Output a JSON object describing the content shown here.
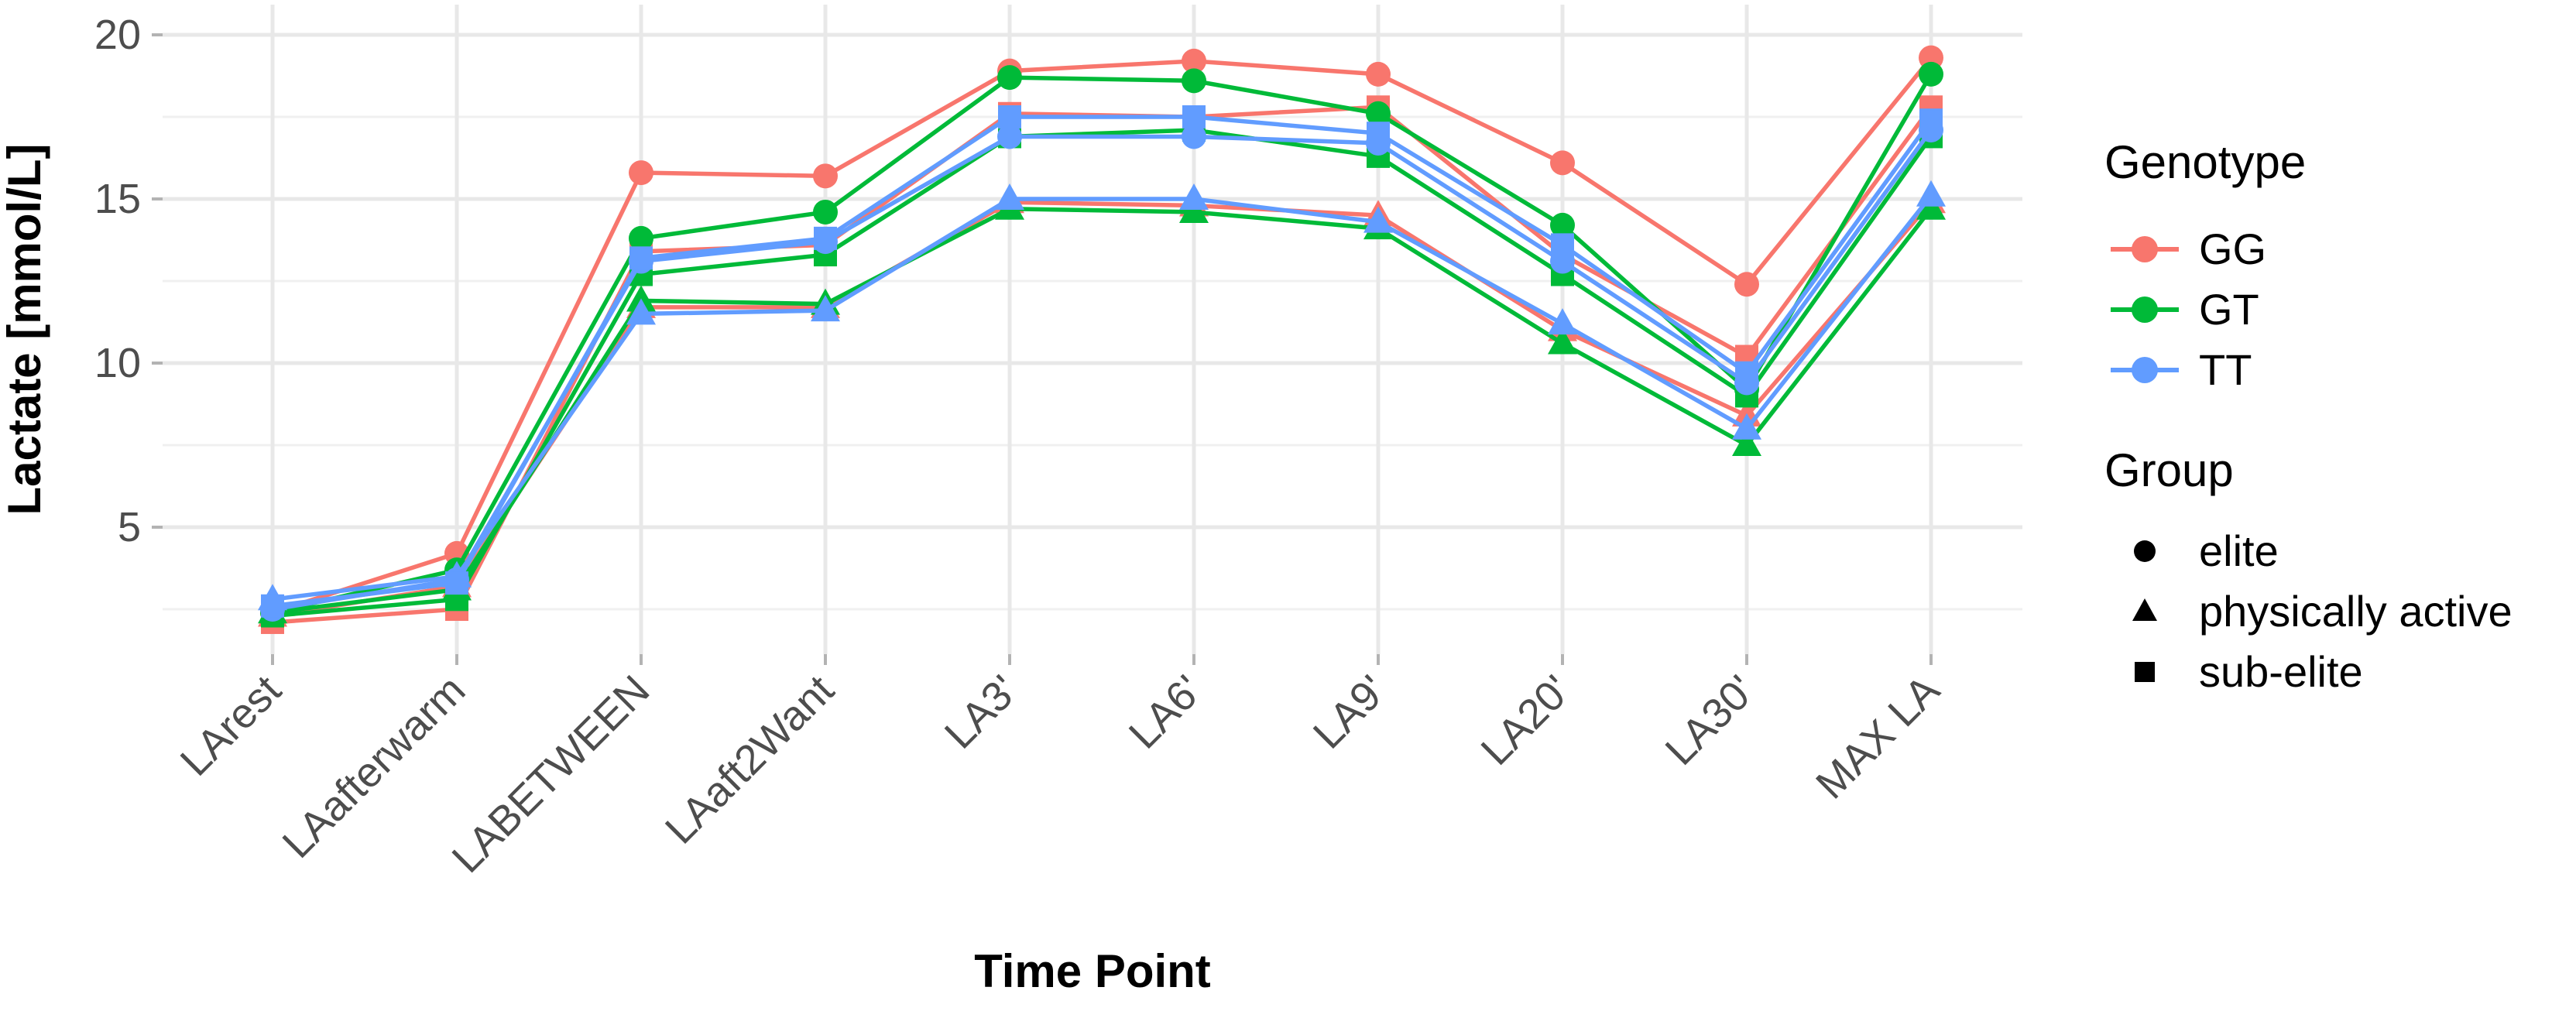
{
  "chart_data": {
    "type": "line",
    "title": "",
    "xlabel": "Time Point",
    "ylabel": "Lactate [mmol/L]",
    "categories": [
      "LArest",
      "LAafterwarm",
      "LABETWEEN",
      "LAaft2Want",
      "LA3'",
      "LA6'",
      "LA9'",
      "LA20'",
      "LA30'",
      "MAX LA"
    ],
    "y_ticks": [
      5,
      10,
      15,
      20
    ],
    "ylim": [
      1,
      21
    ],
    "grid": "on",
    "legend_position": "right",
    "colors": {
      "GG": "#F8766D",
      "GT": "#00BA38",
      "TT": "#619CFF"
    },
    "legend": {
      "genotype": {
        "title": "Genotype",
        "entries": [
          {
            "label": "GG",
            "color": "#F8766D"
          },
          {
            "label": "GT",
            "color": "#00BA38"
          },
          {
            "label": "TT",
            "color": "#619CFF"
          }
        ]
      },
      "group": {
        "title": "Group",
        "entries": [
          {
            "label": "elite",
            "shape": "circle"
          },
          {
            "label": "physically active",
            "shape": "triangle"
          },
          {
            "label": "sub-elite",
            "shape": "square"
          }
        ]
      }
    },
    "series": [
      {
        "name": "GG elite",
        "genotype": "GG",
        "group": "elite",
        "shape": "circle",
        "color": "#F8766D",
        "values": [
          2.4,
          4.2,
          15.8,
          15.7,
          18.9,
          19.2,
          18.8,
          16.1,
          12.4,
          19.3
        ]
      },
      {
        "name": "GG physically active",
        "genotype": "GG",
        "group": "physically active",
        "shape": "triangle",
        "color": "#F8766D",
        "values": [
          2.3,
          3.2,
          11.7,
          11.7,
          14.9,
          14.8,
          14.5,
          11.0,
          8.4,
          14.9
        ]
      },
      {
        "name": "GG sub-elite",
        "genotype": "GG",
        "group": "sub-elite",
        "shape": "square",
        "color": "#F8766D",
        "values": [
          2.1,
          2.5,
          13.4,
          13.6,
          17.6,
          17.5,
          17.8,
          13.3,
          10.2,
          17.8
        ]
      },
      {
        "name": "GT elite",
        "genotype": "GT",
        "group": "elite",
        "shape": "circle",
        "color": "#00BA38",
        "values": [
          2.4,
          3.7,
          13.8,
          14.6,
          18.7,
          18.6,
          17.6,
          14.2,
          9.2,
          18.8
        ]
      },
      {
        "name": "GT physically active",
        "genotype": "GT",
        "group": "physically active",
        "shape": "triangle",
        "color": "#00BA38",
        "values": [
          2.4,
          3.1,
          11.9,
          11.8,
          14.7,
          14.6,
          14.1,
          10.6,
          7.5,
          14.7
        ]
      },
      {
        "name": "GT sub-elite",
        "genotype": "GT",
        "group": "sub-elite",
        "shape": "square",
        "color": "#00BA38",
        "values": [
          2.3,
          2.8,
          12.7,
          13.3,
          16.9,
          17.1,
          16.3,
          12.7,
          9.0,
          16.9
        ]
      },
      {
        "name": "TT elite",
        "genotype": "TT",
        "group": "elite",
        "shape": "circle",
        "color": "#619CFF",
        "values": [
          2.5,
          3.4,
          13.1,
          13.7,
          16.9,
          16.9,
          16.7,
          13.1,
          9.4,
          17.1
        ]
      },
      {
        "name": "TT physically active",
        "genotype": "TT",
        "group": "physically active",
        "shape": "triangle",
        "color": "#619CFF",
        "values": [
          2.8,
          3.5,
          11.5,
          11.6,
          15.0,
          15.0,
          14.3,
          11.2,
          8.0,
          15.1
        ]
      },
      {
        "name": "TT sub-elite",
        "genotype": "TT",
        "group": "sub-elite",
        "shape": "square",
        "color": "#619CFF",
        "values": [
          2.6,
          3.3,
          13.2,
          13.8,
          17.5,
          17.5,
          17.0,
          13.6,
          9.7,
          17.4
        ]
      }
    ]
  },
  "style": {
    "grid_major_color": "#E8E8E8",
    "grid_minor_color": "#F0F0F0",
    "tick_color": "#B3B3B3",
    "tick_label_color": "#4D4D4D",
    "axis_title_color": "#000000",
    "legend_text_color": "#000000"
  }
}
